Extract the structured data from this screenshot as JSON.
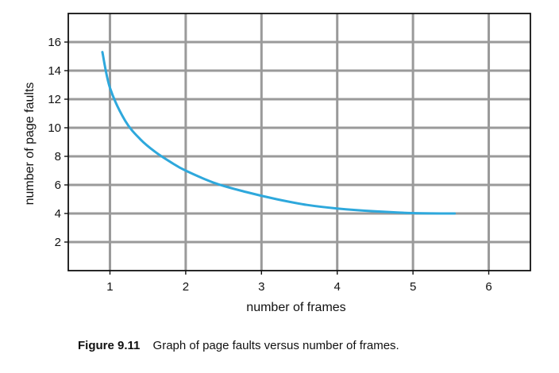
{
  "chart_data": {
    "type": "line",
    "xlabel": "number of frames",
    "ylabel": "number of page faults",
    "xlim": [
      0.45,
      6.55
    ],
    "ylim": [
      0,
      18
    ],
    "x_ticks": [
      1,
      2,
      3,
      4,
      5,
      6
    ],
    "y_ticks": [
      2,
      4,
      6,
      8,
      10,
      12,
      14,
      16
    ],
    "grid": true,
    "series": [
      {
        "color": "#2ea8dc",
        "x": [
          0.9,
          1.0,
          1.2,
          1.4,
          1.6,
          1.8,
          2.0,
          2.4,
          2.8,
          3.2,
          3.6,
          4.0,
          4.5,
          5.0,
          5.55
        ],
        "y": [
          15.3,
          12.8,
          10.5,
          9.2,
          8.3,
          7.6,
          7.0,
          6.1,
          5.5,
          5.0,
          4.6,
          4.35,
          4.15,
          4.03,
          4.0
        ]
      }
    ]
  },
  "caption": {
    "number": "Figure 9.11",
    "text": "Graph of page faults versus number of frames."
  }
}
